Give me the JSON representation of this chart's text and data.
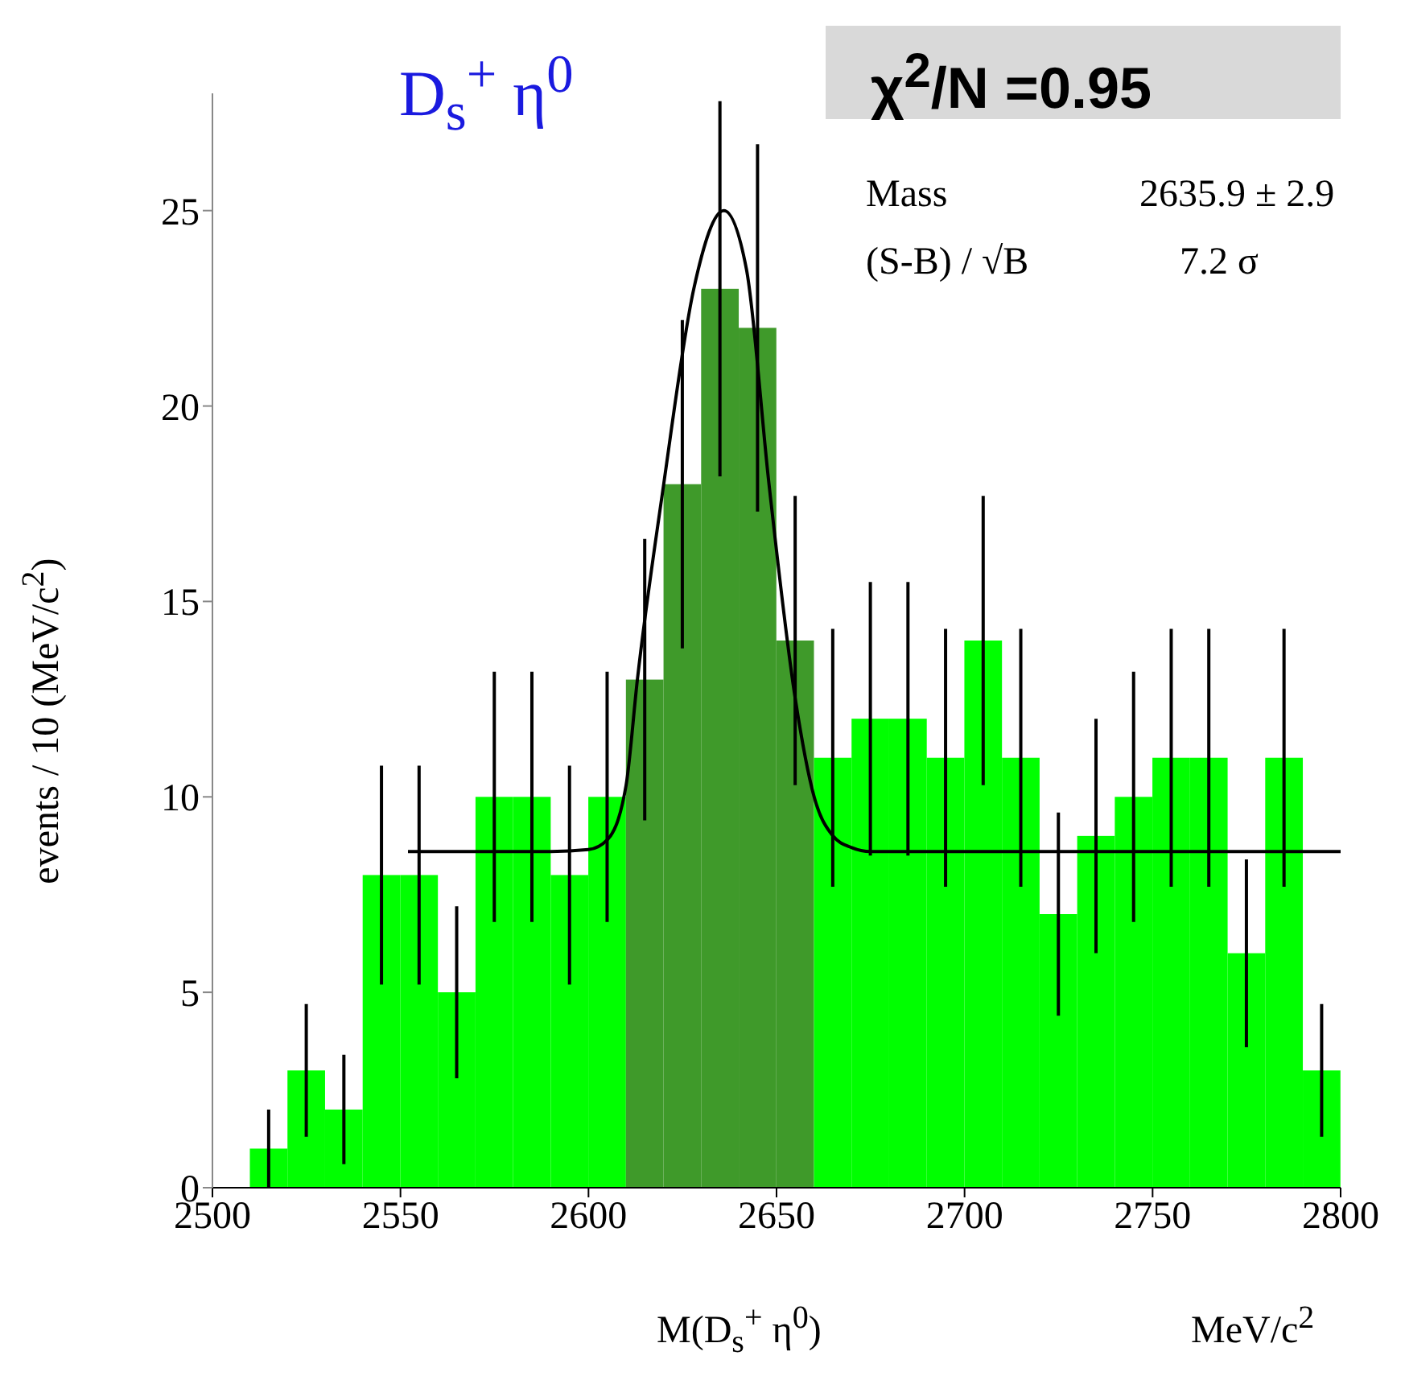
{
  "chart_data": {
    "type": "histogram",
    "title": "D$_{s}$$^{+}$ η$^{0}$",
    "xlabel": "M(D$_{s}$$^{+}$ η$^{0}$)",
    "ylabel": "events / 10 (MeV/c$^{2}$)",
    "bins": [
      2500,
      2510,
      2520,
      2530,
      2540,
      2550,
      2560,
      2570,
      2580,
      2590,
      2600,
      2610,
      2620,
      2630,
      2640,
      2650,
      2660,
      2670,
      2680,
      2690,
      2700,
      2710,
      2720,
      2730,
      2740,
      2750,
      2760,
      2770,
      2780,
      2790,
      2800
    ],
    "values": [
      0,
      1,
      3,
      2,
      8,
      8,
      5,
      10,
      10,
      8,
      10,
      13,
      18,
      23,
      22,
      14,
      11,
      12,
      12,
      11,
      14,
      11,
      7,
      9,
      10,
      11,
      11,
      6,
      11,
      3
    ],
    "errors": [
      null,
      1,
      1.7,
      1.4,
      2.8,
      2.8,
      2.2,
      3.2,
      3.2,
      2.8,
      3.2,
      3.6,
      4.2,
      4.8,
      4.7,
      3.7,
      3.3,
      3.5,
      3.5,
      3.3,
      3.7,
      3.3,
      2.6,
      3,
      3.2,
      3.3,
      3.3,
      2.4,
      3.3,
      1.7
    ],
    "colors": [
      "#00ff00",
      "#00ff00",
      "#00ff00",
      "#00ff00",
      "#00ff00",
      "#00ff00",
      "#00ff00",
      "#00ff00",
      "#00ff00",
      "#00ff00",
      "#00ff00",
      "#3f9a2a",
      "#3f9a2a",
      "#3f9a2a",
      "#3f9a2a",
      "#3f9a2a",
      "#00ff00",
      "#00ff00",
      "#00ff00",
      "#00ff00",
      "#00ff00",
      "#00ff00",
      "#00ff00",
      "#00ff00",
      "#00ff00",
      "#00ff00",
      "#00ff00",
      "#00ff00",
      "#00ff00",
      "#00ff00"
    ],
    "series": [
      {
        "type": "line",
        "color": "#000000",
        "x": [
          2552,
          2590,
          2600,
          2605,
          2610,
          2613,
          2620,
          2628,
          2636,
          2642,
          2648,
          2655,
          2660,
          2665,
          2670,
          2675,
          2690,
          2800
        ],
        "values": [
          8.6,
          8.6,
          8.65,
          8.9,
          10.3,
          13,
          18,
          23,
          25,
          23.5,
          18,
          12.5,
          10,
          9,
          8.7,
          8.6,
          8.6,
          8.6
        ]
      }
    ],
    "xlim": [
      2500,
      2800
    ],
    "xticks": [
      2500,
      2550,
      2600,
      2650,
      2700,
      2750,
      2800
    ],
    "ylim": [
      0,
      28
    ],
    "yticks": [
      0,
      5,
      10,
      15,
      20,
      25
    ],
    "annotations": [
      "χ$^{2}$/N =0.95",
      "Mass",
      "2635.9 ± 2.9",
      "(S-B) / √B",
      "7.2 σ",
      "MeV/c$^{2}$"
    ]
  }
}
